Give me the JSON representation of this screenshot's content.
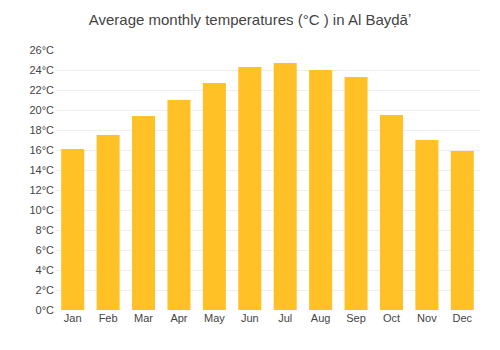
{
  "chart_data": {
    "type": "bar",
    "title": "Average monthly temperatures (°C ) in Al Bayḍāʼ",
    "categories": [
      "Jan",
      "Feb",
      "Mar",
      "Apr",
      "May",
      "Jun",
      "Jul",
      "Aug",
      "Sep",
      "Oct",
      "Nov",
      "Dec"
    ],
    "values": [
      16.1,
      17.5,
      19.4,
      21.0,
      22.7,
      24.3,
      24.7,
      24.0,
      23.3,
      19.5,
      17.0,
      15.9
    ],
    "color": "#FFC125",
    "ylim": [
      0,
      26
    ],
    "yticks": [
      {
        "value": 0,
        "label": "0°C"
      },
      {
        "value": 2,
        "label": "2°C"
      },
      {
        "value": 4,
        "label": "4°C"
      },
      {
        "value": 6,
        "label": "6°C"
      },
      {
        "value": 8,
        "label": "8°C"
      },
      {
        "value": 10,
        "label": "10°C"
      },
      {
        "value": 12,
        "label": "12°C"
      },
      {
        "value": 14,
        "label": "14°C"
      },
      {
        "value": 16,
        "label": "16°C"
      },
      {
        "value": 18,
        "label": "18°C"
      },
      {
        "value": 20,
        "label": "20°C"
      },
      {
        "value": 22,
        "label": "22°C"
      },
      {
        "value": 24,
        "label": "24°C"
      },
      {
        "value": 26,
        "label": "26°C"
      }
    ],
    "grid": true
  }
}
